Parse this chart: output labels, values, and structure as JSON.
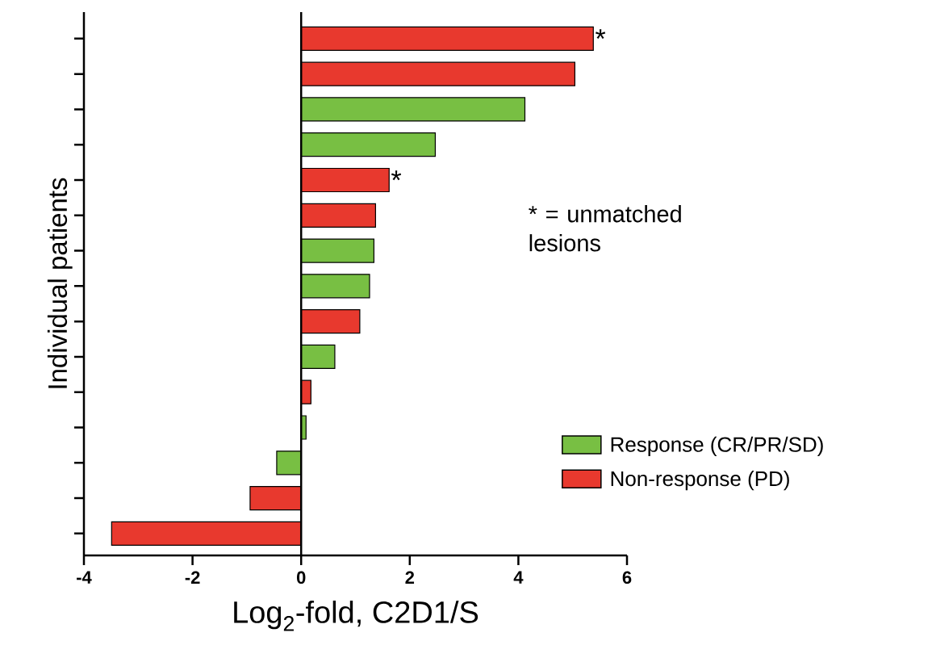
{
  "chart_data": {
    "type": "bar",
    "orientation": "horizontal",
    "xlabel": "Log$_{2}$-fold, C2D1/S",
    "ylabel": "Individual patients",
    "categories": [
      null,
      null,
      null,
      null,
      null,
      null,
      null,
      null,
      null,
      null,
      null,
      null,
      null,
      null,
      null
    ],
    "series": [
      {
        "name": "Response (CR/PR/SD)",
        "color": "#78bf43",
        "values": [
          null,
          null,
          4.12,
          2.47,
          null,
          null,
          1.34,
          1.26,
          null,
          0.62,
          null,
          0.09,
          -0.45,
          null,
          null
        ]
      },
      {
        "name": "Non-response (PD)",
        "color": "#e8392e",
        "values": [
          5.38,
          5.04,
          null,
          null,
          1.62,
          1.37,
          null,
          null,
          1.08,
          null,
          0.18,
          null,
          null,
          -0.94,
          -3.49
        ]
      }
    ],
    "xlim": [
      -4,
      6
    ],
    "xticks": [
      -4,
      -2,
      0,
      2,
      4,
      6
    ],
    "tick_labels": "x",
    "legend": "bottom right",
    "ref_lines": [
      {
        "axis": "x",
        "value": 0
      }
    ],
    "annotations": [
      {
        "text": "*",
        "x": 5.38
      },
      {
        "text": "*",
        "x": 1.62
      },
      "* = unmatched lesions"
    ]
  }
}
